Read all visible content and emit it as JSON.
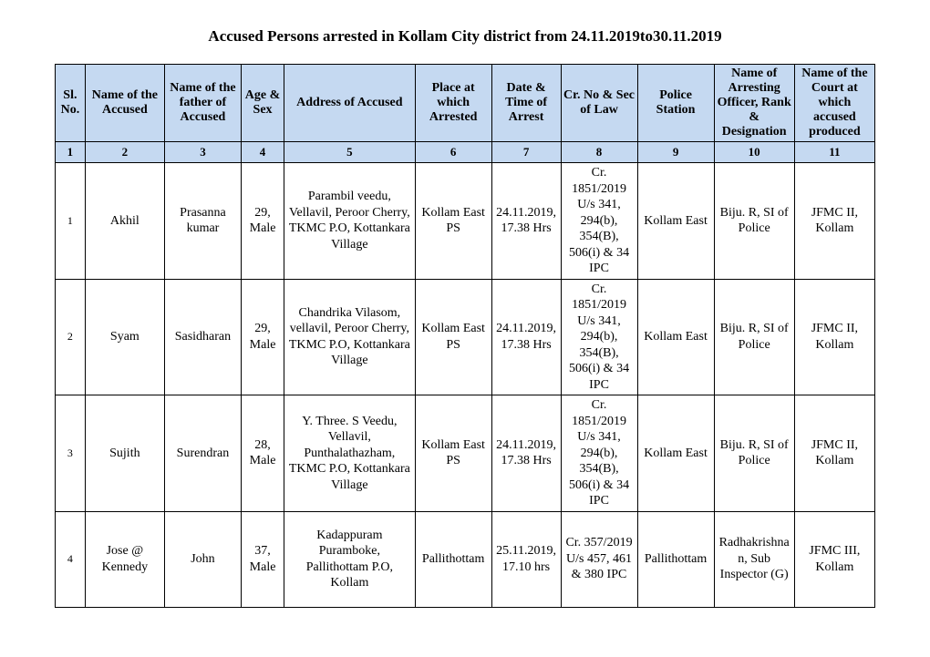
{
  "title": "Accused Persons arrested in   Kollam City  district from  24.11.2019to30.11.2019",
  "columns": [
    "Sl. No.",
    "Name of the Accused",
    "Name of the father of Accused",
    "Age & Sex",
    "Address of Accused",
    "Place at which Arrested",
    "Date & Time of Arrest",
    "Cr. No & Sec of Law",
    "Police Station",
    "Name of Arresting Officer, Rank & Designation",
    "Name of the Court at which accused produced"
  ],
  "colnums": [
    "1",
    "2",
    "3",
    "4",
    "5",
    "6",
    "7",
    "8",
    "9",
    "10",
    "11"
  ],
  "rows": [
    {
      "sl": "1",
      "accused": "Akhil",
      "father": "Prasanna kumar",
      "age": "29, Male",
      "address": "Parambil veedu, Vellavil, Peroor Cherry, TKMC P.O, Kottankara Village",
      "place": "Kollam East PS",
      "datetime": "24.11.2019, 17.38 Hrs",
      "crno": "Cr. 1851/2019 U/s 341, 294(b), 354(B), 506(i) & 34 IPC",
      "station": "Kollam East",
      "officer": "Biju. R, SI of Police",
      "court": "JFMC II, Kollam"
    },
    {
      "sl": "2",
      "accused": "Syam",
      "father": "Sasidharan",
      "age": "29, Male",
      "address": "Chandrika Vilasom, vellavil, Peroor Cherry, TKMC P.O, Kottankara Village",
      "place": "Kollam East PS",
      "datetime": "24.11.2019, 17.38 Hrs",
      "crno": "Cr. 1851/2019 U/s 341, 294(b), 354(B), 506(i) & 34 IPC",
      "station": "Kollam East",
      "officer": "Biju. R, SI of Police",
      "court": "JFMC II, Kollam"
    },
    {
      "sl": "3",
      "accused": "Sujith",
      "father": "Surendran",
      "age": "28, Male",
      "address": "Y. Three. S Veedu, Vellavil, Punthalathazham, TKMC P.O, Kottankara Village",
      "place": "Kollam East PS",
      "datetime": "24.11.2019, 17.38 Hrs",
      "crno": "Cr. 1851/2019 U/s 341, 294(b), 354(B), 506(i) & 34 IPC",
      "station": "Kollam East",
      "officer": "Biju. R, SI of Police",
      "court": "JFMC II, Kollam"
    },
    {
      "sl": "4",
      "accused": "Jose @ Kennedy",
      "father": "John",
      "age": "37, Male",
      "address": "Kadappuram Puramboke, Pallithottam P.O, Kollam",
      "place": "Pallithottam",
      "datetime": "25.11.2019, 17.10 hrs",
      "crno": "Cr. 357/2019 U/s 457, 461 & 380 IPC",
      "station": "Pallithottam",
      "officer": "Radhakrishnan, Sub Inspector (G)",
      "court": "JFMC III, Kollam"
    }
  ]
}
